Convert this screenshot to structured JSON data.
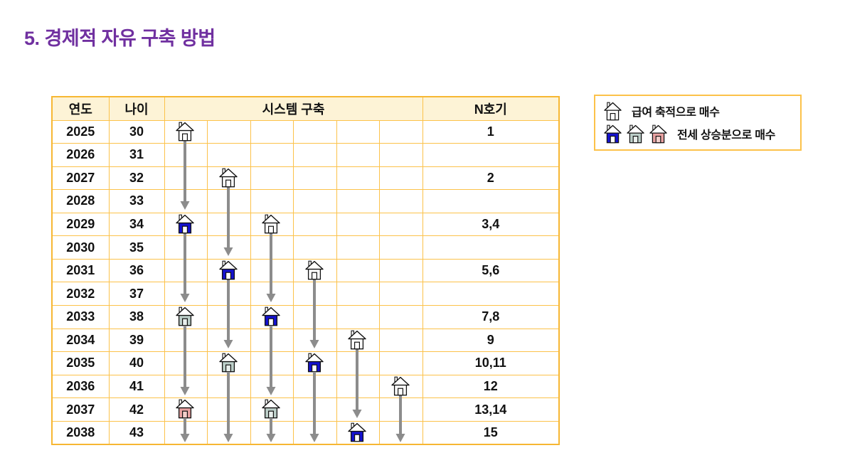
{
  "page": {
    "title": "5. 경제적 자유 구축 방법",
    "title_color": "#7030A0"
  },
  "table": {
    "headers": {
      "year": "연도",
      "age": "나이",
      "system": "시스템 구축",
      "unit": "N호기"
    },
    "system_subcolumns": 6,
    "rows": [
      {
        "year": "2025",
        "age": "30",
        "unit": "1"
      },
      {
        "year": "2026",
        "age": "31",
        "unit": ""
      },
      {
        "year": "2027",
        "age": "32",
        "unit": "2"
      },
      {
        "year": "2028",
        "age": "33",
        "unit": ""
      },
      {
        "year": "2029",
        "age": "34",
        "unit": "3,4"
      },
      {
        "year": "2030",
        "age": "35",
        "unit": ""
      },
      {
        "year": "2031",
        "age": "36",
        "unit": "5,6"
      },
      {
        "year": "2032",
        "age": "37",
        "unit": ""
      },
      {
        "year": "2033",
        "age": "38",
        "unit": "7,8"
      },
      {
        "year": "2034",
        "age": "39",
        "unit": "9"
      },
      {
        "year": "2035",
        "age": "40",
        "unit": "10,11"
      },
      {
        "year": "2036",
        "age": "41",
        "unit": "12"
      },
      {
        "year": "2037",
        "age": "42",
        "unit": "13,14"
      },
      {
        "year": "2038",
        "age": "43",
        "unit": "15"
      }
    ]
  },
  "diagram": {
    "arrow_color": "#8C8C8C",
    "house_colors": {
      "white": {
        "body": "#FFFFFF",
        "door": "#FFFFFF"
      },
      "blue": {
        "body": "#1512D0",
        "door": "#FFFFFF"
      },
      "green": {
        "body": "#BCCFC9",
        "door": "#E9F0ED"
      },
      "red": {
        "body": "#E9A2A2",
        "door": "#F5CFCB"
      }
    },
    "houses": [
      {
        "row": 0,
        "col": 0,
        "color": "white"
      },
      {
        "row": 2,
        "col": 1,
        "color": "white"
      },
      {
        "row": 4,
        "col": 0,
        "color": "blue"
      },
      {
        "row": 4,
        "col": 2,
        "color": "white"
      },
      {
        "row": 6,
        "col": 1,
        "color": "blue"
      },
      {
        "row": 6,
        "col": 3,
        "color": "white"
      },
      {
        "row": 8,
        "col": 0,
        "color": "green"
      },
      {
        "row": 8,
        "col": 2,
        "color": "blue"
      },
      {
        "row": 9,
        "col": 4,
        "color": "white"
      },
      {
        "row": 10,
        "col": 1,
        "color": "green"
      },
      {
        "row": 10,
        "col": 3,
        "color": "blue"
      },
      {
        "row": 11,
        "col": 5,
        "color": "white"
      },
      {
        "row": 12,
        "col": 0,
        "color": "red"
      },
      {
        "row": 12,
        "col": 2,
        "color": "green"
      },
      {
        "row": 13,
        "col": 4,
        "color": "blue"
      }
    ],
    "arrows": [
      {
        "col": 0,
        "fromRow": 0,
        "toRow": 3
      },
      {
        "col": 0,
        "fromRow": 4,
        "toRow": 7
      },
      {
        "col": 0,
        "fromRow": 8,
        "toRow": 11
      },
      {
        "col": 0,
        "fromRow": 12,
        "toRow": 13
      },
      {
        "col": 1,
        "fromRow": 2,
        "toRow": 5
      },
      {
        "col": 1,
        "fromRow": 6,
        "toRow": 9
      },
      {
        "col": 1,
        "fromRow": 10,
        "toRow": 13
      },
      {
        "col": 2,
        "fromRow": 4,
        "toRow": 7
      },
      {
        "col": 2,
        "fromRow": 8,
        "toRow": 11
      },
      {
        "col": 2,
        "fromRow": 12,
        "toRow": 13
      },
      {
        "col": 3,
        "fromRow": 6,
        "toRow": 9
      },
      {
        "col": 3,
        "fromRow": 10,
        "toRow": 13
      },
      {
        "col": 4,
        "fromRow": 9,
        "toRow": 12
      },
      {
        "col": 5,
        "fromRow": 11,
        "toRow": 13
      }
    ]
  },
  "legend": {
    "row1": {
      "icons": [
        "white"
      ],
      "label": "급여 축적으로 매수"
    },
    "row2": {
      "icons": [
        "blue",
        "green",
        "red"
      ],
      "label": "전세 상승분으로 매수"
    }
  }
}
